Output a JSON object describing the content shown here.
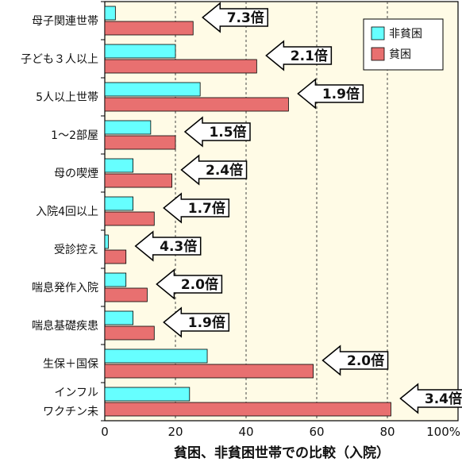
{
  "chart_data": {
    "type": "bar",
    "orientation": "horizontal",
    "categories": [
      [
        "母子関連世帯"
      ],
      [
        "子ども３人以上"
      ],
      [
        "5人以上世帯"
      ],
      [
        "1〜2部屋"
      ],
      [
        "母の喫煙"
      ],
      [
        "入院4回以上"
      ],
      [
        "受診控え"
      ],
      [
        "喘息発作入院"
      ],
      [
        "喘息基礎疾患"
      ],
      [
        "生保＋国保"
      ],
      [
        "インフル",
        "ワクチン未"
      ]
    ],
    "series": [
      {
        "name": "非貧困",
        "color": "#66ffff",
        "values": [
          3,
          20,
          27,
          13,
          8,
          8,
          1,
          6,
          8,
          29,
          24
        ]
      },
      {
        "name": "貧困",
        "color": "#e87070",
        "values": [
          25,
          43,
          52,
          20,
          19,
          14,
          6,
          12,
          14,
          59,
          81
        ]
      }
    ],
    "ratios": [
      "7.3倍",
      "2.1倍",
      "1.9倍",
      "1.5倍",
      "2.4倍",
      "1.7倍",
      "4.3倍",
      "2.0倍",
      "1.9倍",
      "2.0倍",
      "3.4倍"
    ],
    "xlim": [
      0,
      100
    ],
    "xticks": [
      "0",
      "20",
      "40",
      "60",
      "80",
      "100%"
    ],
    "xlabel": "貧困、非貧困世帯での比較（入院）",
    "legend_position": "top-right",
    "grid": "vertical dashed"
  }
}
